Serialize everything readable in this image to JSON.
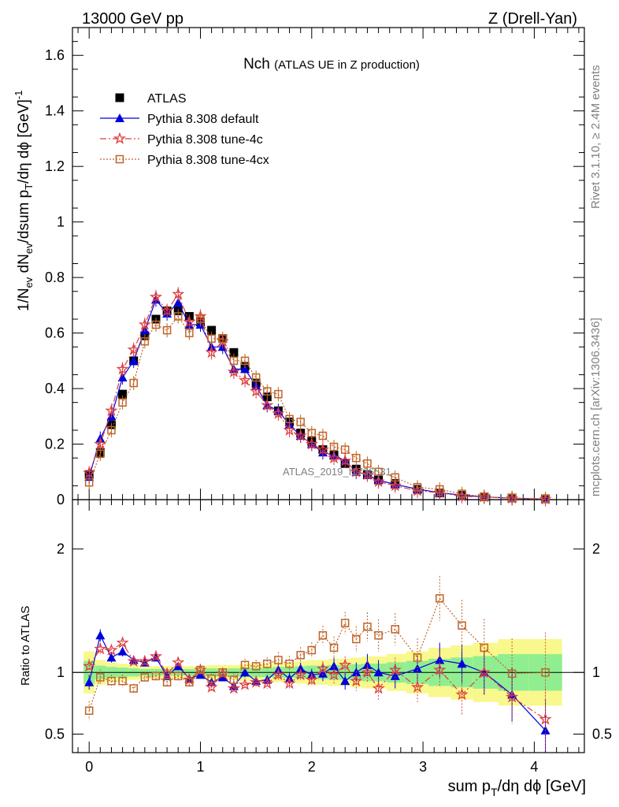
{
  "header": {
    "left": "13000 GeV pp",
    "right": "Z (Drell-Yan)"
  },
  "side": {
    "rivet": "Rivet 3.1.10, ≥ 2.4M events",
    "mcplots": "mcplots.cern.ch [arXiv:1306.3436]"
  },
  "watermark": "ATLAS_2019_I1736531",
  "colors": {
    "atlas": "#000000",
    "default": "#0000dd",
    "tune4c": "#e03c3c",
    "tune4cx": "#c06428",
    "band_inner": "#90ee90",
    "band_outer": "#f8f88c"
  },
  "chart_data": [
    {
      "type": "scatter",
      "title_main": "Nch",
      "title_sub": "(ATLAS UE in Z production)",
      "ylabel": "1/N_ev dN_ev/dsum p_T/dη dϕ [GeV]^-1",
      "ylim": [
        0,
        1.7
      ],
      "xlim": [
        -0.15,
        4.45
      ],
      "yticks": [
        "0",
        "0.2",
        "0.4",
        "0.6",
        "0.8",
        "1",
        "1.2",
        "1.4",
        "1.6"
      ],
      "legend": [
        "ATLAS",
        "Pythia 8.308 default",
        "Pythia 8.308 tune-4c",
        "Pythia 8.308 tune-4cx"
      ],
      "x": [
        0.0,
        0.1,
        0.2,
        0.3,
        0.4,
        0.5,
        0.6,
        0.7,
        0.8,
        0.9,
        1.0,
        1.1,
        1.2,
        1.3,
        1.4,
        1.5,
        1.6,
        1.7,
        1.8,
        1.9,
        2.0,
        2.1,
        2.2,
        2.3,
        2.4,
        2.5,
        2.6,
        2.75,
        2.95,
        3.15,
        3.35,
        3.55,
        3.8,
        4.1
      ],
      "series": [
        {
          "name": "ATLAS",
          "values": [
            0.09,
            0.17,
            0.27,
            0.38,
            0.5,
            0.59,
            0.65,
            0.68,
            0.68,
            0.66,
            0.64,
            0.61,
            0.58,
            0.53,
            0.48,
            0.42,
            0.37,
            0.32,
            0.28,
            0.24,
            0.21,
            0.18,
            0.16,
            0.13,
            0.11,
            0.09,
            0.075,
            0.058,
            0.037,
            0.024,
            0.015,
            0.01,
            0.006,
            0.003
          ]
        },
        {
          "name": "Pythia 8.308 default",
          "values": [
            0.082,
            0.22,
            0.3,
            0.44,
            0.5,
            0.61,
            0.72,
            0.67,
            0.71,
            0.63,
            0.63,
            0.55,
            0.55,
            0.47,
            0.47,
            0.41,
            0.34,
            0.32,
            0.27,
            0.23,
            0.2,
            0.17,
            0.16,
            0.14,
            0.1,
            0.09,
            0.07,
            0.055,
            0.038,
            0.025,
            0.016,
            0.01,
            0.005,
            0.0016
          ]
        },
        {
          "name": "Pythia 8.308 tune-4c",
          "values": [
            0.096,
            0.2,
            0.32,
            0.47,
            0.54,
            0.63,
            0.73,
            0.68,
            0.74,
            0.64,
            0.66,
            0.53,
            0.57,
            0.46,
            0.43,
            0.39,
            0.34,
            0.31,
            0.25,
            0.23,
            0.2,
            0.18,
            0.15,
            0.14,
            0.1,
            0.09,
            0.065,
            0.05,
            0.032,
            0.025,
            0.012,
            0.01,
            0.005,
            0.0019
          ]
        },
        {
          "name": "Pythia 8.308 tune-4cx",
          "values": [
            0.062,
            0.165,
            0.25,
            0.35,
            0.42,
            0.57,
            0.63,
            0.61,
            0.66,
            0.6,
            0.65,
            0.58,
            0.58,
            0.5,
            0.5,
            0.44,
            0.39,
            0.38,
            0.29,
            0.28,
            0.24,
            0.23,
            0.19,
            0.18,
            0.15,
            0.13,
            0.1,
            0.08,
            0.045,
            0.037,
            0.021,
            0.01,
            0.006,
            0.003
          ]
        }
      ]
    },
    {
      "type": "line",
      "ylabel": "Ratio to ATLAS",
      "xlabel": "sum p_T/dη dϕ [GeV]",
      "ylim": [
        0.35,
        2.4
      ],
      "yticks": [
        "0.5",
        "1",
        "2"
      ],
      "xticks": [
        "0",
        "1",
        "2",
        "3",
        "4"
      ],
      "x": [
        0.0,
        0.1,
        0.2,
        0.3,
        0.4,
        0.5,
        0.6,
        0.7,
        0.8,
        0.9,
        1.0,
        1.1,
        1.2,
        1.3,
        1.4,
        1.5,
        1.6,
        1.7,
        1.8,
        1.9,
        2.0,
        2.1,
        2.2,
        2.3,
        2.4,
        2.5,
        2.6,
        2.75,
        2.95,
        3.15,
        3.35,
        3.55,
        3.8,
        4.1
      ],
      "series": [
        {
          "name": "Pythia 8.308 default",
          "values": [
            0.92,
            1.3,
            1.12,
            1.17,
            1.1,
            1.08,
            1.12,
            0.97,
            1.05,
            0.95,
            0.98,
            0.92,
            0.96,
            0.89,
            1.0,
            0.93,
            0.94,
            1.02,
            0.95,
            1.03,
            0.98,
            0.99,
            1.05,
            0.93,
            1.0,
            1.06,
            1.0,
            0.97,
            1.03,
            1.1,
            1.07,
            1.0,
            0.82,
            0.53
          ]
        },
        {
          "name": "Pythia 8.308 tune-4c",
          "values": [
            1.05,
            1.19,
            1.18,
            1.24,
            1.09,
            1.09,
            1.13,
            0.99,
            1.08,
            0.94,
            1.02,
            0.88,
            0.99,
            0.87,
            0.9,
            0.92,
            0.91,
            0.98,
            0.91,
            0.98,
            0.94,
            1.03,
            0.98,
            1.06,
            0.93,
            1.0,
            0.87,
            1.02,
            0.88,
            1.02,
            0.82,
            1.0,
            0.8,
            0.62
          ]
        },
        {
          "name": "Pythia 8.308 tune-4cx",
          "values": [
            0.69,
            0.96,
            0.93,
            0.93,
            0.87,
            0.96,
            0.97,
            0.92,
            0.97,
            0.92,
            1.02,
            0.95,
            1.0,
            0.94,
            1.06,
            1.05,
            1.07,
            1.1,
            1.07,
            1.14,
            1.18,
            1.3,
            1.2,
            1.4,
            1.27,
            1.37,
            1.3,
            1.35,
            1.12,
            1.6,
            1.38,
            1.2,
            0.99,
            1.0
          ]
        }
      ]
    }
  ]
}
